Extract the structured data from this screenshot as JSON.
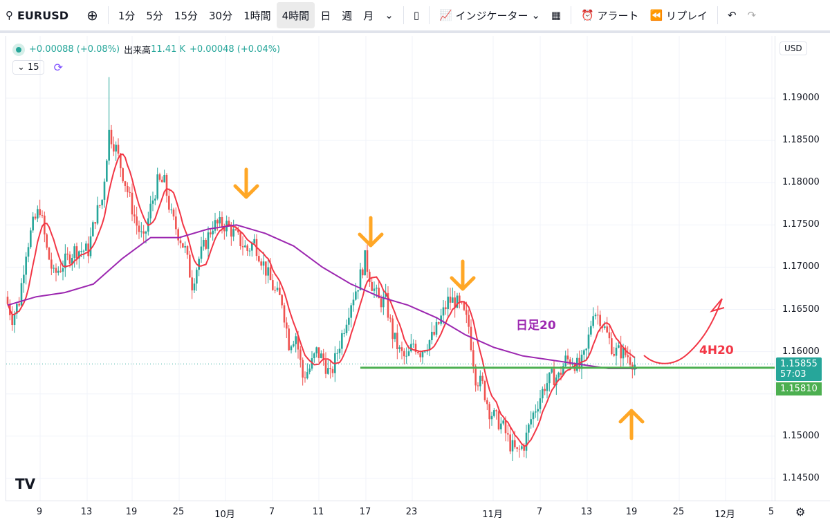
{
  "toolbar": {
    "symbol": "EURUSD",
    "intervals": [
      "1分",
      "5分",
      "15分",
      "30分",
      "1時間",
      "4時間",
      "日",
      "週",
      "月"
    ],
    "active_interval": "4時間",
    "indicators": "インジケーター",
    "alert": "アラート",
    "replay": "リプレイ"
  },
  "legend": {
    "change1": "+0.00088 (+0.08%)",
    "volume_label": "出来高",
    "volume": "11.41 K",
    "change2": "+0.00048 (+0.04%)",
    "ma_length": "15"
  },
  "price_axis": {
    "currency": "USD",
    "ticks": [
      "1.19000",
      "1.18500",
      "1.18000",
      "1.17500",
      "1.17000",
      "1.16500",
      "1.16000",
      "1.15500",
      "1.15000",
      "1.14500"
    ],
    "last_price": "1.15855",
    "countdown": "57:03",
    "line_price": "1.15810"
  },
  "time_axis": {
    "ticks": [
      "9",
      "13",
      "19",
      "25",
      "10月",
      "7",
      "11",
      "17",
      "23",
      "11月",
      "7",
      "13",
      "19",
      "25",
      "12月",
      "5"
    ]
  },
  "annotations": {
    "daily_ma_label": "日足20",
    "h4_ma_label": "4H20"
  },
  "colors": {
    "up": "#26a69a",
    "down": "#ef5350",
    "ma_4h": "#f23645",
    "ma_daily": "#9c27b0",
    "arrow": "#ffa726",
    "support": "#4caf50"
  },
  "chart_data": {
    "type": "candlestick",
    "ylim": [
      1.142,
      1.197
    ],
    "closes": [
      1.1665,
      1.164,
      1.166,
      1.172,
      1.175,
      1.177,
      1.172,
      1.169,
      1.17,
      1.171,
      1.172,
      1.172,
      1.172,
      1.176,
      1.178,
      1.186,
      1.184,
      1.181,
      1.178,
      1.175,
      1.173,
      1.177,
      1.18,
      1.18,
      1.176,
      1.174,
      1.172,
      1.168,
      1.171,
      1.173,
      1.175,
      1.175,
      1.175,
      1.174,
      1.173,
      1.172,
      1.173,
      1.171,
      1.169,
      1.167,
      1.166,
      1.161,
      1.162,
      1.157,
      1.158,
      1.16,
      1.159,
      1.157,
      1.16,
      1.163,
      1.166,
      1.168,
      1.171,
      1.168,
      1.166,
      1.166,
      1.162,
      1.16,
      1.159,
      1.161,
      1.16,
      1.161,
      1.162,
      1.164,
      1.166,
      1.166,
      1.165,
      1.163,
      1.157,
      1.156,
      1.153,
      1.152,
      1.151,
      1.149,
      1.148,
      1.149,
      1.152,
      1.154,
      1.156,
      1.157,
      1.157,
      1.159,
      1.159,
      1.158,
      1.16,
      1.165,
      1.164,
      1.162,
      1.16,
      1.16,
      1.1595,
      1.1585
    ],
    "daily_ma": [
      1.1655,
      1.1665,
      1.167,
      1.168,
      1.171,
      1.1735,
      1.1735,
      1.1745,
      1.175,
      1.174,
      1.1725,
      1.17,
      1.168,
      1.1665,
      1.1655,
      1.164,
      1.162,
      1.1605,
      1.1595,
      1.159,
      1.1585,
      1.158,
      1.158
    ]
  }
}
